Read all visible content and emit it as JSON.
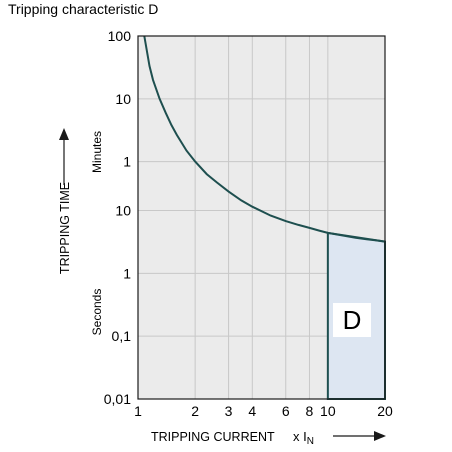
{
  "chart_data": {
    "type": "line",
    "title": "Tripping characteristic D",
    "xlabel": "TRIPPING CURRENT",
    "xunit": "x I",
    "xunit_sub": "N",
    "ylabel": "TRIPPING TIME",
    "x_scale": "log",
    "x_range": [
      1,
      20
    ],
    "x_ticks": [
      "1",
      "2",
      "3",
      "4",
      "6",
      "8",
      "10",
      "20"
    ],
    "y_scale": "log",
    "y_range_seconds": [
      0.01,
      6000
    ],
    "y_ticks_minutes": [
      "100",
      "10",
      "1"
    ],
    "y_ticks_seconds": [
      "10",
      "1",
      "0,1",
      "0,01"
    ],
    "y_unit_labels": {
      "minutes": "Minutes",
      "seconds": "Seconds"
    },
    "grid": true,
    "curve_color": "#1e4f4f",
    "series": [
      {
        "x": [
          1.08,
          1.15,
          1.2,
          1.3,
          1.4,
          1.5,
          1.6,
          1.8,
          2,
          2.3,
          2.6,
          3,
          3.5,
          4,
          5,
          6,
          7,
          8,
          9,
          10,
          12,
          14,
          16,
          18,
          20
        ],
        "y": [
          6000,
          2000,
          1200,
          600,
          360,
          230,
          160,
          90,
          60,
          38,
          28,
          20,
          14.5,
          11.5,
          8.3,
          6.8,
          5.9,
          5.3,
          4.8,
          4.4,
          4.0,
          3.7,
          3.5,
          3.35,
          3.2
        ]
      }
    ],
    "zone": {
      "label": "D",
      "x_from": 10,
      "x_to": 20,
      "y_from": 0.01,
      "y_to_at_x_from": 4.4,
      "y_to_at_x_to": 3.2,
      "fill": "#dde6f2"
    },
    "colors": {
      "axis": "#1a1a1a",
      "grid": "#c8c8c8",
      "background": "#ebebeb"
    }
  }
}
